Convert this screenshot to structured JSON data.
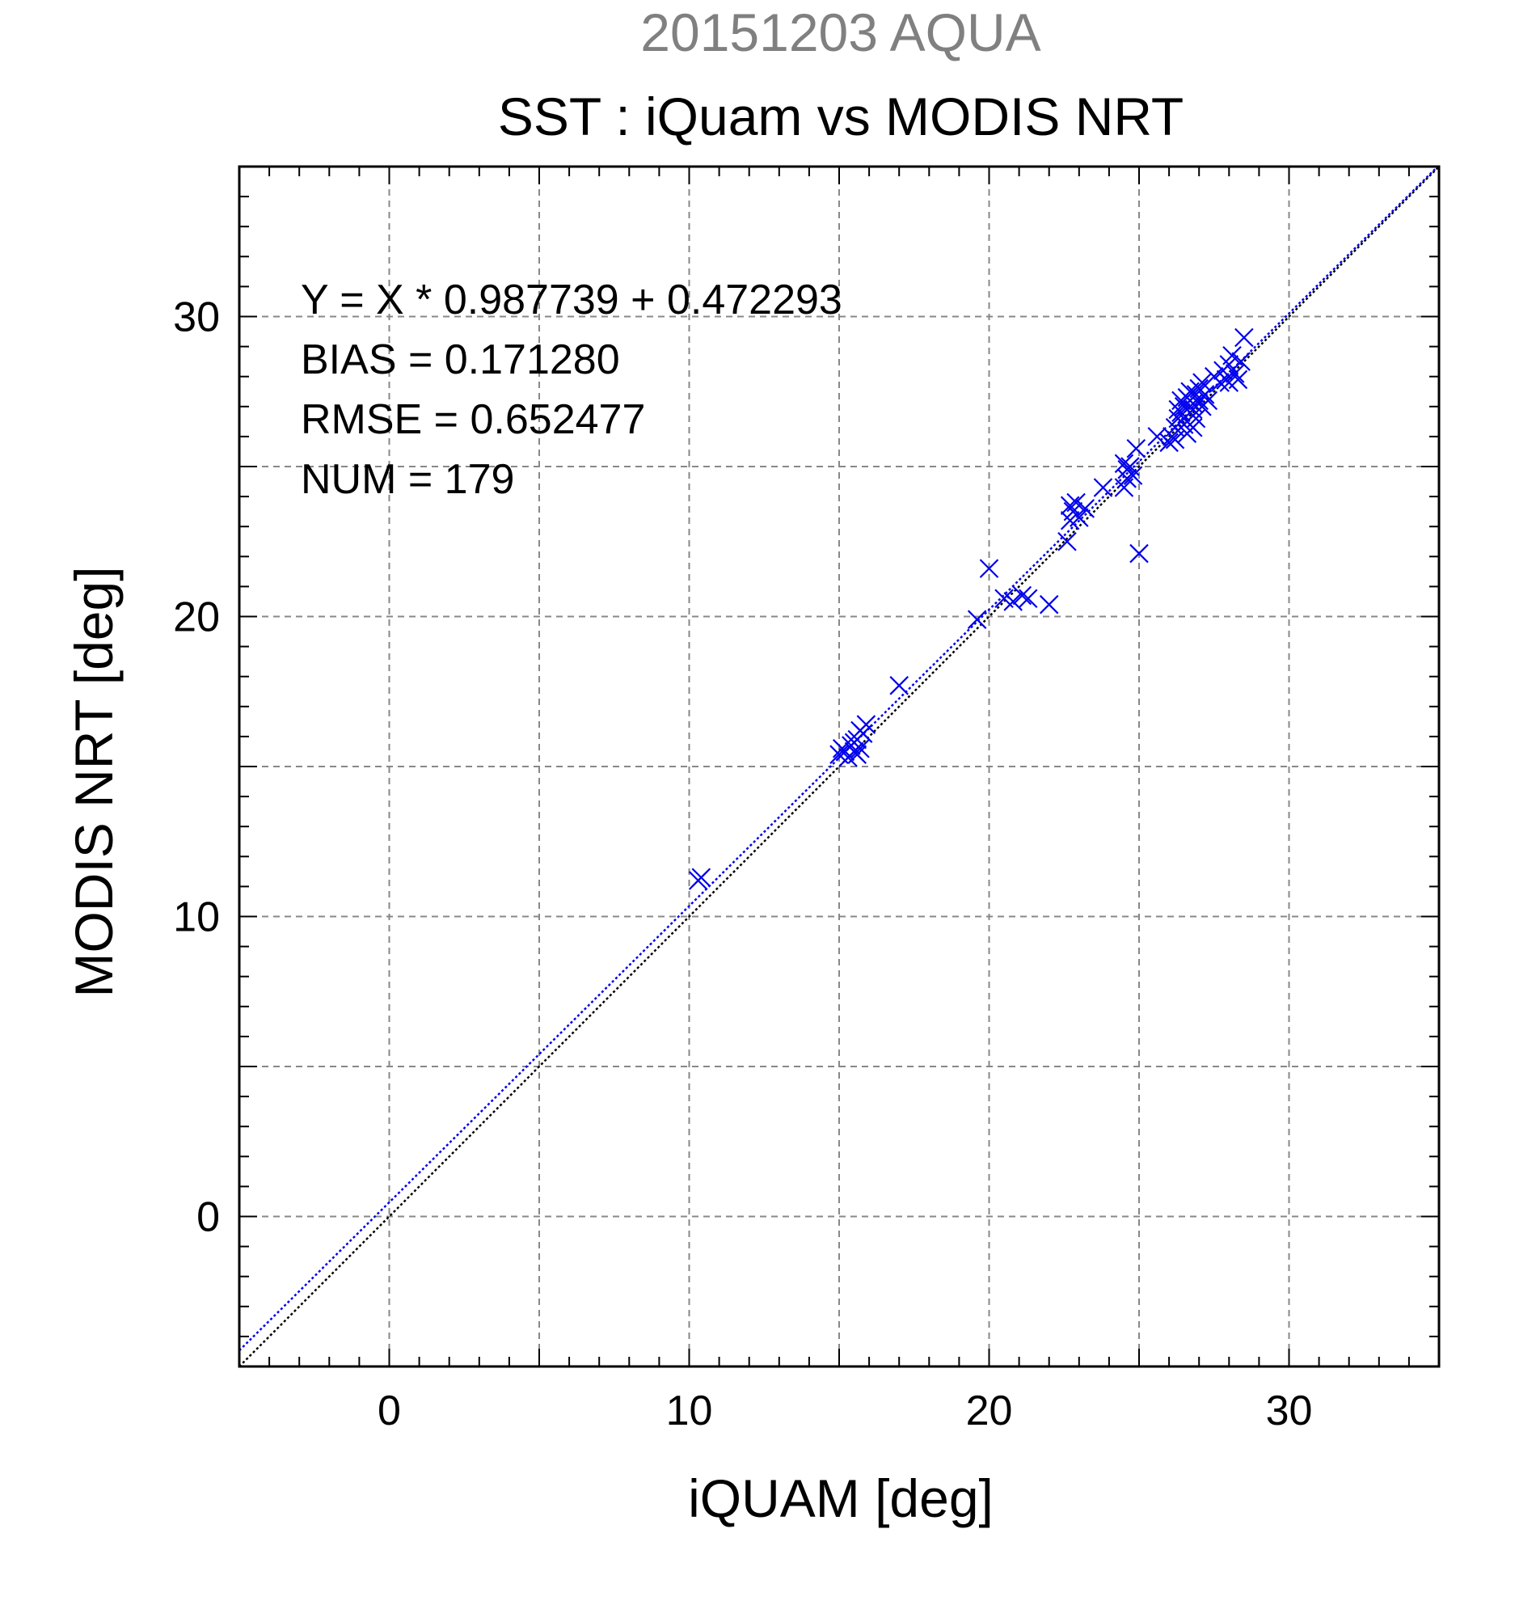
{
  "chart_data": {
    "type": "scatter",
    "supertitle": "20151203 AQUA",
    "title": "SST : iQuam vs MODIS NRT",
    "xlabel": "iQUAM [deg]",
    "ylabel": "MODIS NRT [deg]",
    "xlim": [
      -5,
      35
    ],
    "ylim": [
      -5,
      35
    ],
    "xticks": [
      0,
      10,
      20,
      30
    ],
    "yticks": [
      0,
      10,
      20,
      30
    ],
    "tick_labels_x": [
      "0",
      "10",
      "20",
      "30"
    ],
    "tick_labels_y": [
      "0",
      "10",
      "20",
      "30"
    ],
    "grid": true,
    "grid_step": 5,
    "marker": "x",
    "colors": {
      "points": "#0000ee",
      "fit_line": "#0000ee",
      "identity_line": "#000000",
      "grid": "#888888",
      "supertitle": "#808080",
      "text": "#000000"
    },
    "stats": [
      "Y = X * 0.987739 + 0.472293",
      "BIAS = 0.171280",
      "RMSE = 0.652477",
      "NUM = 179"
    ],
    "fit": {
      "slope": 0.987739,
      "intercept": 0.472293
    },
    "identity": {
      "slope": 1,
      "intercept": 0
    },
    "points": [
      [
        10.3,
        11.2
      ],
      [
        10.4,
        11.3
      ],
      [
        15.0,
        15.4
      ],
      [
        15.1,
        15.6
      ],
      [
        15.2,
        15.5
      ],
      [
        15.3,
        15.3
      ],
      [
        15.4,
        15.7
      ],
      [
        15.5,
        15.5
      ],
      [
        15.6,
        15.9
      ],
      [
        15.7,
        16.2
      ],
      [
        15.8,
        16.1
      ],
      [
        15.9,
        16.4
      ],
      [
        15.5,
        15.8
      ],
      [
        15.6,
        15.4
      ],
      [
        15.7,
        15.6
      ],
      [
        17.0,
        17.7
      ],
      [
        19.6,
        19.9
      ],
      [
        20.0,
        21.6
      ],
      [
        20.5,
        20.6
      ],
      [
        20.8,
        20.5
      ],
      [
        21.1,
        20.7
      ],
      [
        21.3,
        20.6
      ],
      [
        22.0,
        20.4
      ],
      [
        22.6,
        22.5
      ],
      [
        22.7,
        23.2
      ],
      [
        22.7,
        23.7
      ],
      [
        22.8,
        23.5
      ],
      [
        22.9,
        23.8
      ],
      [
        23.0,
        23.3
      ],
      [
        23.2,
        23.6
      ],
      [
        23.8,
        24.3
      ],
      [
        24.5,
        24.3
      ],
      [
        24.6,
        24.6
      ],
      [
        24.6,
        24.9
      ],
      [
        24.7,
        25.0
      ],
      [
        24.8,
        24.7
      ],
      [
        24.9,
        25.6
      ],
      [
        25.0,
        22.1
      ],
      [
        24.5,
        25.1
      ],
      [
        25.6,
        26.0
      ],
      [
        26.0,
        25.8
      ],
      [
        26.1,
        26.0
      ],
      [
        26.2,
        26.3
      ],
      [
        26.3,
        26.6
      ],
      [
        26.3,
        26.9
      ],
      [
        26.4,
        27.2
      ],
      [
        26.5,
        26.4
      ],
      [
        26.5,
        27.0
      ],
      [
        26.6,
        27.3
      ],
      [
        26.6,
        26.1
      ],
      [
        26.7,
        26.8
      ],
      [
        26.7,
        27.5
      ],
      [
        26.8,
        26.3
      ],
      [
        26.8,
        27.1
      ],
      [
        26.9,
        27.4
      ],
      [
        26.9,
        26.6
      ],
      [
        27.0,
        27.2
      ],
      [
        27.0,
        27.6
      ],
      [
        27.1,
        27.8
      ],
      [
        27.2,
        27.4
      ],
      [
        27.3,
        27.2
      ],
      [
        26.4,
        26.8
      ],
      [
        26.6,
        26.5
      ],
      [
        26.8,
        26.9
      ],
      [
        27.5,
        28.0
      ],
      [
        27.7,
        27.8
      ],
      [
        27.9,
        27.9
      ],
      [
        28.0,
        28.4
      ],
      [
        28.1,
        28.7
      ],
      [
        28.2,
        28.1
      ],
      [
        28.3,
        27.9
      ],
      [
        28.4,
        28.5
      ],
      [
        28.5,
        29.3
      ],
      [
        27.8,
        28.2
      ],
      [
        28.0,
        27.8
      ],
      [
        26.2,
        25.9
      ],
      [
        27.1,
        27.0
      ]
    ]
  }
}
